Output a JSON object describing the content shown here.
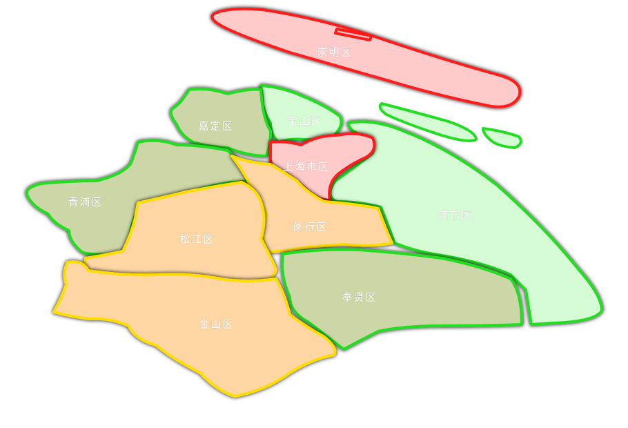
{
  "map": {
    "colors": {
      "red_stroke": "#ff1a1a",
      "red_fill": "#ffcaca",
      "green_stroke": "#22dd22",
      "green_fill_light": "#d4fbd4",
      "green_fill_olive": "#cdd6a6",
      "yellow_stroke": "#ffdd00",
      "yellow_fill": "#fdd6a4"
    },
    "districts": [
      {
        "id": "chongming",
        "name": "崇明区",
        "level": "red"
      },
      {
        "id": "baoshan",
        "name": "宝山区",
        "level": "green-light"
      },
      {
        "id": "jiading",
        "name": "嘉定区",
        "level": "green-olive"
      },
      {
        "id": "shanghai-city",
        "name": "上海市区",
        "level": "red"
      },
      {
        "id": "qingpu",
        "name": "青浦区",
        "level": "green-olive"
      },
      {
        "id": "minhang",
        "name": "闵行区",
        "level": "yellow"
      },
      {
        "id": "pudong",
        "name": "浦东区",
        "level": "green-light"
      },
      {
        "id": "songjiang",
        "name": "松江区",
        "level": "yellow"
      },
      {
        "id": "fengxian",
        "name": "奉贤区",
        "level": "green-olive"
      },
      {
        "id": "jinshan",
        "name": "金山区",
        "level": "yellow"
      }
    ]
  }
}
